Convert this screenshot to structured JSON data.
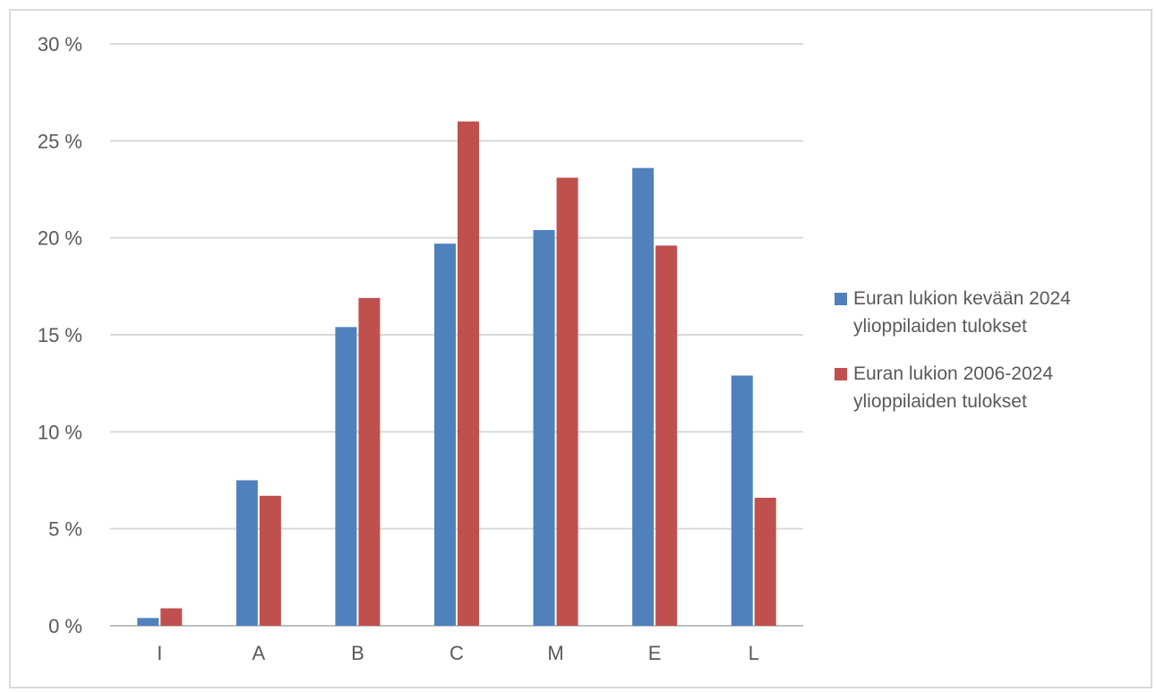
{
  "chart_data": {
    "type": "bar",
    "categories": [
      "I",
      "A",
      "B",
      "C",
      "M",
      "E",
      "L"
    ],
    "series": [
      {
        "name": "Euran lukion kevään 2024 ylioppilaiden tulokset",
        "color": "#4f81bd",
        "values": [
          0.4,
          7.5,
          15.4,
          19.7,
          20.4,
          23.6,
          12.9
        ]
      },
      {
        "name": "Euran lukion 2006-2024 ylioppilaiden tulokset",
        "color": "#c0504d",
        "values": [
          0.9,
          6.7,
          16.9,
          26.0,
          23.1,
          19.6,
          6.6
        ]
      }
    ],
    "yticks": [
      "0 %",
      "5 %",
      "10 %",
      "15 %",
      "20 %",
      "25 %",
      "30 %"
    ],
    "ylim": [
      0,
      30
    ],
    "ystep": 5,
    "grid": true,
    "legend_position": "right",
    "title": "",
    "xlabel": "",
    "ylabel": ""
  }
}
